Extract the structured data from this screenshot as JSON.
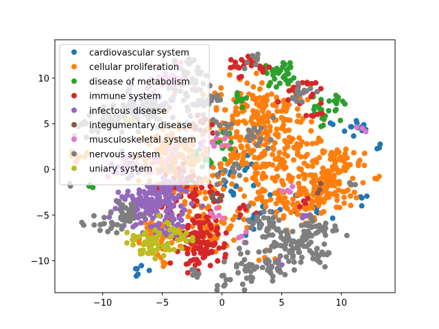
{
  "chart_data": {
    "type": "scatter",
    "xlim": [
      -14.0,
      14.5
    ],
    "ylim": [
      -13.5,
      14.2
    ],
    "x_ticks": [
      -10,
      -5,
      0,
      5,
      10
    ],
    "y_ticks": [
      -10,
      -5,
      0,
      5,
      10
    ],
    "x_tick_labels": [
      "−10",
      "−5",
      "0",
      "5",
      "10"
    ],
    "y_tick_labels": [
      "−10",
      "−5",
      "0",
      "5",
      "10"
    ],
    "grid": false,
    "legend_position": "upper-left",
    "title": "",
    "xlabel": "",
    "ylabel": "",
    "series": [
      {
        "name": "cardiovascular system",
        "color": "#1f77b4",
        "clusters": [
          [
            11.5,
            4.5,
            0.6,
            12
          ],
          [
            13,
            2.5,
            0.2,
            3
          ],
          [
            11.8,
            -3.2,
            0.3,
            4
          ],
          [
            1.5,
            0,
            1.0,
            16
          ],
          [
            5,
            -4,
            0.8,
            10
          ],
          [
            -1.5,
            2,
            0.8,
            10
          ],
          [
            2,
            -6,
            0.8,
            8
          ],
          [
            9,
            5,
            0.3,
            2
          ],
          [
            -6.8,
            -11.2,
            0.4,
            6
          ],
          [
            -7.5,
            7,
            0.6,
            6
          ],
          [
            8,
            -5,
            0.6,
            6
          ],
          [
            0,
            -2.5,
            0.8,
            6
          ],
          [
            6.5,
            7.5,
            0.3,
            3
          ]
        ]
      },
      {
        "name": "cellular proliferation",
        "color": "#ff7f0e",
        "clusters": [
          [
            3,
            6,
            2.0,
            180
          ],
          [
            -4,
            1.5,
            1.5,
            120
          ],
          [
            5,
            0,
            2.2,
            170
          ],
          [
            9,
            -2,
            1.2,
            60
          ],
          [
            10,
            1,
            0.9,
            40
          ],
          [
            -1,
            -6.5,
            1.3,
            60
          ],
          [
            -6,
            -7,
            0.9,
            40
          ],
          [
            -3,
            -2,
            1.2,
            45
          ],
          [
            6,
            -4,
            1.2,
            45
          ],
          [
            13,
            -1.2,
            0.2,
            3
          ],
          [
            -12,
            1.5,
            0.5,
            8
          ],
          [
            -5,
            -10,
            0.4,
            5
          ],
          [
            4,
            -10,
            0.4,
            3
          ],
          [
            8.5,
            -3,
            1.0,
            30
          ],
          [
            1.5,
            1.5,
            1.0,
            30
          ]
        ]
      },
      {
        "name": "disease of metabolism",
        "color": "#2ca02c",
        "clusters": [
          [
            5,
            10.5,
            0.7,
            30
          ],
          [
            8.2,
            6.2,
            0.8,
            20
          ],
          [
            9.5,
            7.5,
            0.4,
            10
          ],
          [
            -11,
            -1.8,
            0.2,
            3
          ],
          [
            1.5,
            8,
            0.6,
            8
          ],
          [
            0.5,
            3,
            0.6,
            8
          ],
          [
            -1.3,
            0.5,
            0.5,
            5
          ]
        ]
      },
      {
        "name": "immune system",
        "color": "#d62728",
        "clusters": [
          [
            -1.5,
            -8.5,
            1.0,
            70
          ],
          [
            -2,
            -6,
            0.9,
            30
          ],
          [
            -3,
            -1.8,
            1.0,
            40
          ],
          [
            1.5,
            11.5,
            0.6,
            20
          ],
          [
            6.5,
            8.5,
            0.9,
            20
          ],
          [
            -1.5,
            4.8,
            0.5,
            10
          ],
          [
            1.8,
            -4.5,
            0.4,
            5
          ],
          [
            -0.5,
            -3,
            0.5,
            6
          ],
          [
            7.5,
            6,
            0.5,
            5
          ],
          [
            -4.5,
            -4.5,
            0.5,
            8
          ],
          [
            7,
            -3.5,
            0.4,
            4
          ],
          [
            3.5,
            10.8,
            0.4,
            5
          ],
          [
            -2.6,
            -10,
            0.4,
            6
          ]
        ]
      },
      {
        "name": "infectous disease",
        "color": "#9467bd",
        "clusters": [
          [
            -5.5,
            -3.5,
            1.3,
            110
          ],
          [
            -7.5,
            -4.5,
            0.8,
            40
          ],
          [
            -4.5,
            -6,
            0.8,
            30
          ],
          [
            -6,
            7.5,
            1.0,
            25
          ],
          [
            -8,
            0.5,
            1.0,
            15
          ],
          [
            -4.5,
            -2,
            0.7,
            15
          ],
          [
            4.5,
            -9.8,
            0.3,
            3
          ],
          [
            7,
            -5.5,
            0.4,
            5
          ]
        ]
      },
      {
        "name": "integumentary disease",
        "color": "#8c564b",
        "clusters": [
          [
            -3,
            -1.5,
            0.5,
            5
          ],
          [
            -1,
            -3.5,
            0.5,
            5
          ],
          [
            -1.5,
            5,
            0.4,
            3
          ],
          [
            8,
            -2,
            0.4,
            3
          ]
        ]
      },
      {
        "name": "musculoskeletal system",
        "color": "#e377c2",
        "clusters": [
          [
            -4.5,
            10,
            0.8,
            30
          ],
          [
            -8,
            0,
            0.8,
            15
          ],
          [
            -5,
            1.5,
            0.6,
            10
          ],
          [
            -0.5,
            2.8,
            0.6,
            10
          ],
          [
            1.8,
            -7.5,
            0.4,
            5
          ],
          [
            11.8,
            4.3,
            0.2,
            3
          ],
          [
            5.5,
            -2,
            0.4,
            4
          ],
          [
            -0.5,
            -4.8,
            0.4,
            5
          ]
        ]
      },
      {
        "name": "nervous system",
        "color": "#7f7f7f",
        "clusters": [
          [
            -8,
            -5,
            0.7,
            30
          ],
          [
            -9.5,
            -6,
            0.5,
            15
          ],
          [
            -2.5,
            8,
            1.2,
            50
          ],
          [
            -6.5,
            6.5,
            1.0,
            40
          ],
          [
            -9.5,
            5.5,
            0.8,
            30
          ],
          [
            -11.5,
            4.8,
            0.5,
            10
          ],
          [
            5.8,
            -8.5,
            1.0,
            60
          ],
          [
            8,
            -6.5,
            0.9,
            40
          ],
          [
            2.5,
            -10.5,
            1.0,
            40
          ],
          [
            3.5,
            -6,
            0.9,
            30
          ],
          [
            6.5,
            8.5,
            0.7,
            15
          ],
          [
            2.5,
            12,
            0.4,
            8
          ],
          [
            5,
            -11,
            0.4,
            8
          ],
          [
            8,
            -9.5,
            0.5,
            15
          ],
          [
            0,
            -12,
            0.4,
            8
          ],
          [
            -12.8,
            -1.6,
            0.1,
            2
          ],
          [
            -11.8,
            -6,
            0.1,
            2
          ],
          [
            -2.5,
            11,
            0.6,
            15
          ],
          [
            -1.8,
            -11.5,
            0.4,
            6
          ],
          [
            3,
            3.5,
            0.8,
            15
          ],
          [
            -0.3,
            4.8,
            0.6,
            10
          ],
          [
            11,
            -1.5,
            0.3,
            3
          ],
          [
            1,
            -0.5,
            0.7,
            10
          ]
        ]
      },
      {
        "name": "uniary system",
        "color": "#bcbd22",
        "clusters": [
          [
            -6,
            -8.3,
            0.8,
            50
          ],
          [
            -3.5,
            -7.5,
            0.5,
            12
          ],
          [
            -4.5,
            -6.5,
            0.4,
            8
          ],
          [
            -8,
            5.5,
            0.3,
            4
          ],
          [
            -7.5,
            -7.5,
            0.3,
            5
          ]
        ]
      }
    ]
  }
}
